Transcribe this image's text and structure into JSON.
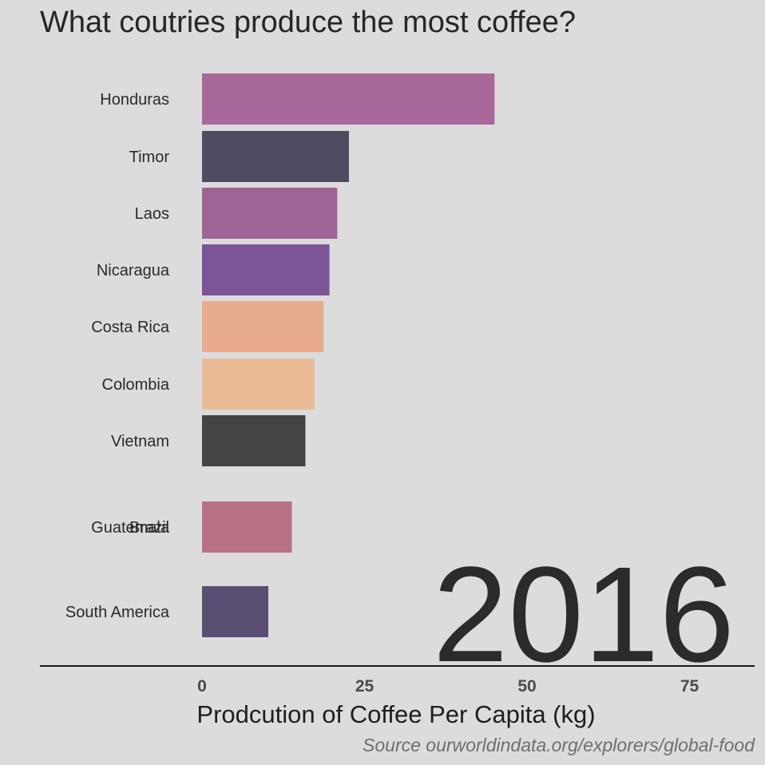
{
  "chart_data": {
    "type": "bar",
    "orientation": "horizontal",
    "title": "What coutries produce the most coffee?",
    "xlabel": "Prodcution of Coffee Per Capita (kg)",
    "ylabel": "",
    "xlim": [
      0,
      85
    ],
    "xticks": [
      0,
      25,
      50,
      75
    ],
    "caption": "Source ourworldindata.org/explorers/global-food",
    "frame_label": "2016",
    "grid": false,
    "legend": "none",
    "bars": [
      {
        "category": "Honduras",
        "value": 45,
        "color": "#a86899"
      },
      {
        "category": "Timor",
        "value": 22.6,
        "color": "#4f4b63"
      },
      {
        "category": "Laos",
        "value": 20.8,
        "color": "#9d6596"
      },
      {
        "category": "Nicaragua",
        "value": 19.6,
        "color": "#7b5596"
      },
      {
        "category": "Costa Rica",
        "value": 18.7,
        "color": "#e7ac8e"
      },
      {
        "category": "Colombia",
        "value": 17.3,
        "color": "#ebbb97"
      },
      {
        "category": "Vietnam",
        "value": 15.9,
        "color": "#444346"
      },
      {
        "category": "Guatemala",
        "value": 13.8,
        "color": "#b97185"
      },
      {
        "category": "Brazil",
        "value": 13.8,
        "color": "#b97185"
      },
      {
        "category": "South America",
        "value": 10.2,
        "color": "#5a4f73"
      }
    ]
  }
}
